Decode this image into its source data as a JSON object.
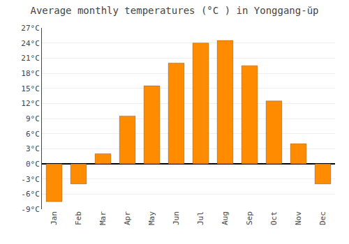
{
  "chart_data": {
    "type": "bar",
    "title": "Average monthly temperatures (°C ) in Yonggang-ŭp",
    "categories": [
      "Jan",
      "Feb",
      "Mar",
      "Apr",
      "May",
      "Jun",
      "Jul",
      "Aug",
      "Sep",
      "Oct",
      "Nov",
      "Dec"
    ],
    "values": [
      -7.5,
      -4.0,
      2.0,
      9.5,
      15.5,
      20.0,
      24.0,
      24.5,
      19.5,
      12.5,
      4.0,
      -4.0
    ],
    "color": "#FF8C00",
    "ylim": [
      -9,
      27
    ],
    "yticks": [
      {
        "value": -9,
        "label": "-9°C"
      },
      {
        "value": -6,
        "label": "-6°C"
      },
      {
        "value": -3,
        "label": "-3°C"
      },
      {
        "value": 0,
        "label": "0°C"
      },
      {
        "value": 3,
        "label": "3°C"
      },
      {
        "value": 6,
        "label": "6°C"
      },
      {
        "value": 9,
        "label": "9°C"
      },
      {
        "value": 12,
        "label": "12°C"
      },
      {
        "value": 15,
        "label": "15°C"
      },
      {
        "value": 18,
        "label": "18°C"
      },
      {
        "value": 21,
        "label": "21°C"
      },
      {
        "value": 24,
        "label": "24°C"
      },
      {
        "value": 27,
        "label": "27°C"
      }
    ],
    "grid": true
  }
}
